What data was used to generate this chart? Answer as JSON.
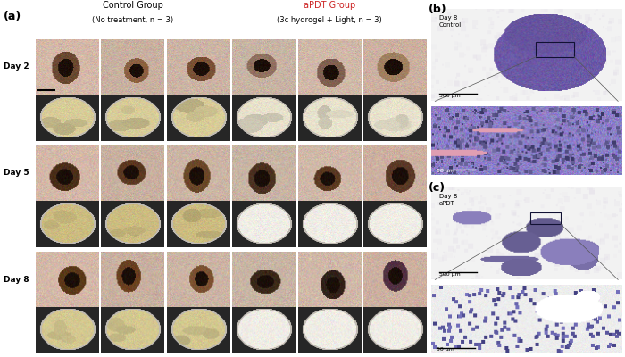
{
  "panel_a_label": "(a)",
  "panel_b_label": "(b)",
  "panel_c_label": "(c)",
  "control_title": "Control Group",
  "control_subtitle": "(No treatment, n = 3)",
  "apdt_title": "aPDT Group",
  "apdt_subtitle": "(3c hydrogel + Light, n = 3)",
  "day_labels": [
    "Day 2",
    "Day 5",
    "Day 8"
  ],
  "b_day_label": "Day 8\nControl",
  "c_day_label": "Day 8\naPDT",
  "scale_500": "500 μm",
  "scale_50": "50 μm",
  "bg_color": "#ffffff",
  "figsize": [
    7.0,
    4.0
  ],
  "dpi": 100
}
